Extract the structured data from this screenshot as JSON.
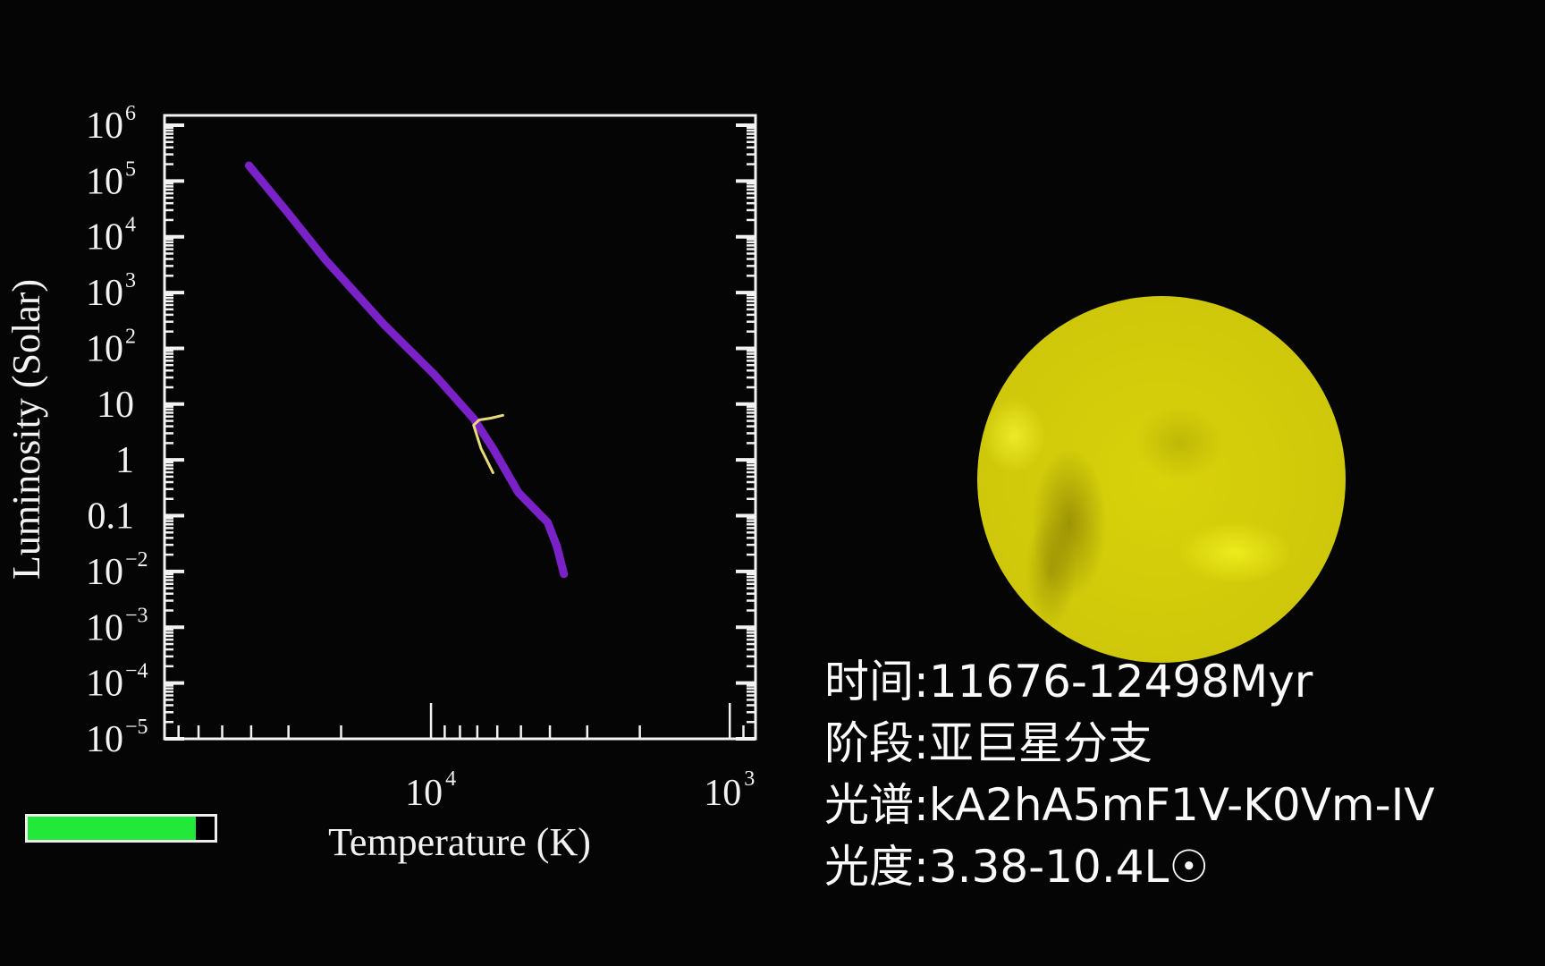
{
  "chart_data": {
    "type": "line",
    "xlabel": "Temperature (K)",
    "ylabel": "Luminosity (Solar)",
    "x_scale": "log-reversed",
    "y_scale": "log",
    "xlim": [
      78000,
      820
    ],
    "ylim": [
      1e-05,
      1500000
    ],
    "x_ticks": [
      {
        "value": 10000,
        "base": "10",
        "sup": "4"
      },
      {
        "value": 1000,
        "base": "10",
        "sup": "3"
      }
    ],
    "y_ticks": [
      {
        "value": 1000000,
        "base": "10",
        "sup": "6"
      },
      {
        "value": 100000,
        "base": "10",
        "sup": "5"
      },
      {
        "value": 10000,
        "base": "10",
        "sup": "4"
      },
      {
        "value": 1000,
        "base": "10",
        "sup": "3"
      },
      {
        "value": 100,
        "base": "10",
        "sup": "2"
      },
      {
        "value": 10,
        "base": "10",
        "sup": ""
      },
      {
        "value": 1,
        "base": "1",
        "sup": ""
      },
      {
        "value": 0.1,
        "base": "0.1",
        "sup": ""
      },
      {
        "value": 0.01,
        "base": "10",
        "sup": "−2"
      },
      {
        "value": 0.001,
        "base": "10",
        "sup": "−3"
      },
      {
        "value": 0.0001,
        "base": "10",
        "sup": "−4"
      },
      {
        "value": 1e-05,
        "base": "10",
        "sup": "−5"
      }
    ],
    "grid": false,
    "series": [
      {
        "role": "main-sequence",
        "color": "#7a22c8",
        "points": [
          [
            40700,
            190000
          ],
          [
            30500,
            29000
          ],
          [
            22500,
            3800
          ],
          [
            14300,
            260
          ],
          [
            9800,
            35
          ],
          [
            7200,
            5.5
          ],
          [
            6200,
            1.6
          ],
          [
            5100,
            0.26
          ],
          [
            4070,
            0.076
          ],
          [
            3790,
            0.028
          ],
          [
            3590,
            0.009
          ]
        ]
      },
      {
        "role": "evolution-track",
        "color": "#e8dc7a",
        "points": [
          [
            6200,
            0.59
          ],
          [
            6800,
            1.6
          ],
          [
            7200,
            4.2
          ],
          [
            6900,
            5.2
          ],
          [
            6300,
            5.6
          ],
          [
            5750,
            6.3
          ]
        ]
      }
    ]
  },
  "progress": {
    "fraction": 0.9,
    "color": "#22e83a"
  },
  "star": {
    "color": "#d8d20a"
  },
  "info": {
    "time": "时间:11676-12498Myr",
    "stage": "阶段:亚巨星分支",
    "spectrum": "光谱:kA2hA5mF1V-K0Vm-IV",
    "luminosity": "光度:3.38-10.4L☉"
  }
}
